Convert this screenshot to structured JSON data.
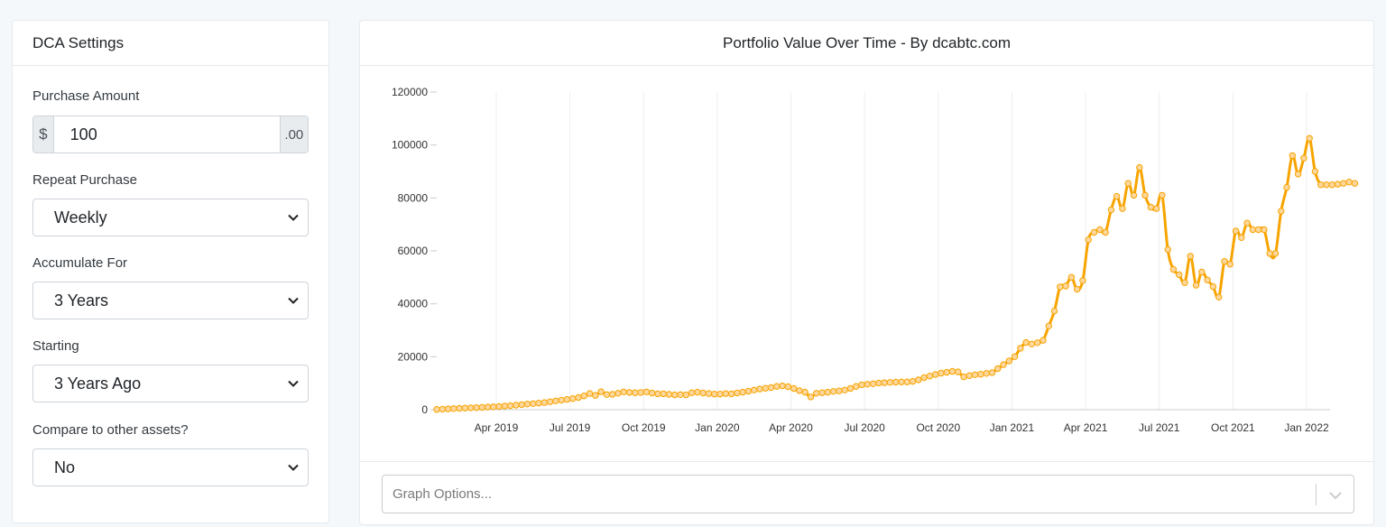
{
  "settings": {
    "title": "DCA Settings",
    "purchase_amount": {
      "label": "Purchase Amount",
      "prefix": "$",
      "value": "100",
      "suffix": ".00"
    },
    "repeat_purchase": {
      "label": "Repeat Purchase",
      "value": "Weekly"
    },
    "accumulate_for": {
      "label": "Accumulate For",
      "value": "3 Years"
    },
    "starting": {
      "label": "Starting",
      "value": "3 Years Ago"
    },
    "compare": {
      "label": "Compare to other assets?",
      "value": "No"
    }
  },
  "chart_panel": {
    "graph_options_placeholder": "Graph Options..."
  },
  "chart_data": {
    "type": "line",
    "title": "Portfolio Value Over Time - By dcabtc.com",
    "xlabel": "",
    "ylabel": "",
    "ylim": [
      0,
      120000
    ],
    "y_ticks": [
      "0",
      "20000",
      "40000",
      "60000",
      "80000",
      "100000",
      "120000"
    ],
    "x_ticks": [
      {
        "label": "Apr 2019",
        "week": 10.5
      },
      {
        "label": "Jul 2019",
        "week": 23.5
      },
      {
        "label": "Oct 2019",
        "week": 36.5
      },
      {
        "label": "Jan 2020",
        "week": 49.5
      },
      {
        "label": "Apr 2020",
        "week": 62.5
      },
      {
        "label": "Jul 2020",
        "week": 75.5
      },
      {
        "label": "Oct 2020",
        "week": 88.5
      },
      {
        "label": "Jan 2021",
        "week": 101.5
      },
      {
        "label": "Apr 2021",
        "week": 114.5
      },
      {
        "label": "Jul 2021",
        "week": 127.5
      },
      {
        "label": "Oct 2021",
        "week": 140.5
      },
      {
        "label": "Jan 2022",
        "week": 153.5
      }
    ],
    "x_max_week": 157,
    "grid": true,
    "series": [
      {
        "name": "Portfolio Value",
        "color": "#f7a400",
        "values": [
          100,
          200,
          300,
          400,
          500,
          600,
          700,
          800,
          900,
          1000,
          1100,
          1200,
          1350,
          1500,
          1700,
          1900,
          2100,
          2300,
          2500,
          2700,
          3000,
          3300,
          3600,
          3900,
          4200,
          4600,
          5200,
          6100,
          5400,
          6800,
          5700,
          5800,
          6200,
          6700,
          6500,
          6400,
          6500,
          6700,
          6300,
          6000,
          6000,
          5800,
          5600,
          5700,
          5600,
          6400,
          6600,
          6300,
          6100,
          5900,
          5900,
          6100,
          6000,
          6300,
          6600,
          7000,
          7400,
          7800,
          8100,
          8400,
          8800,
          9000,
          8700,
          8000,
          7200,
          6600,
          4800,
          6200,
          6400,
          6600,
          6900,
          7100,
          7400,
          8000,
          8800,
          9400,
          9600,
          9800,
          10100,
          10200,
          10300,
          10400,
          10500,
          10500,
          10700,
          11300,
          12100,
          12700,
          13300,
          13800,
          14100,
          14500,
          14300,
          12400,
          12900,
          13200,
          13400,
          13700,
          14000,
          15500,
          17000,
          18400,
          20000,
          23200,
          25400,
          24800,
          25300,
          26200,
          31600,
          37300,
          46400,
          46700,
          50000,
          45500,
          48800,
          64200,
          67000,
          68000,
          67000,
          75500,
          80600,
          76000,
          85500,
          81000,
          91500,
          81000,
          76500,
          76000,
          81000,
          60500,
          53000,
          51000,
          48000,
          58000,
          47000,
          52000,
          49000,
          46500,
          42500,
          56000,
          55000,
          67500,
          65000,
          70500,
          68000,
          68000,
          68000,
          59000,
          59000,
          75000,
          84000,
          96000,
          89000,
          95000,
          102500,
          90000,
          85000,
          85000,
          85000,
          85200,
          85500,
          86000,
          85500
        ]
      }
    ]
  },
  "colors": {
    "line": "#f7a400",
    "marker_fill": "#fdd79c",
    "grid": "#eeeeee"
  }
}
